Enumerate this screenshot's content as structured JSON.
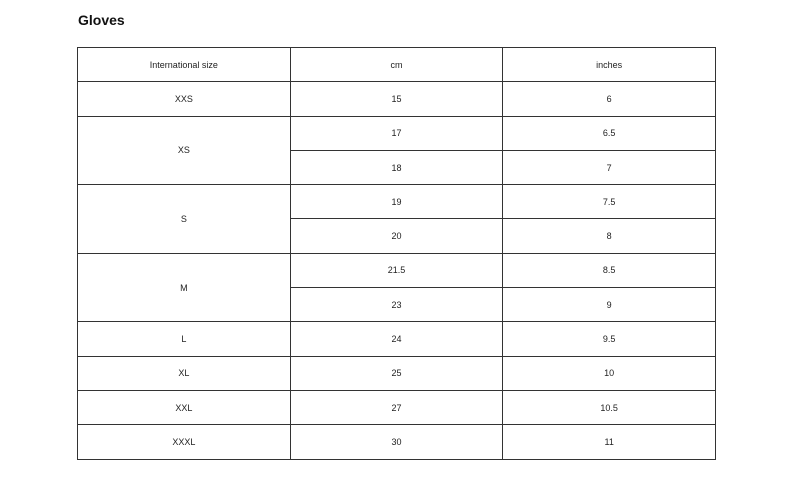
{
  "title": "Gloves",
  "headers": [
    "International size",
    "cm",
    "inches"
  ],
  "groups": [
    {
      "size": "XXS",
      "rows": [
        [
          "15",
          "6"
        ]
      ]
    },
    {
      "size": "XS",
      "rows": [
        [
          "17",
          "6.5"
        ],
        [
          "18",
          "7"
        ]
      ]
    },
    {
      "size": "S",
      "rows": [
        [
          "19",
          "7.5"
        ],
        [
          "20",
          "8"
        ]
      ]
    },
    {
      "size": "M",
      "rows": [
        [
          "21.5",
          "8.5"
        ],
        [
          "23",
          "9"
        ]
      ]
    },
    {
      "size": "L",
      "rows": [
        [
          "24",
          "9.5"
        ]
      ]
    },
    {
      "size": "XL",
      "rows": [
        [
          "25",
          "10"
        ]
      ]
    },
    {
      "size": "XXL",
      "rows": [
        [
          "27",
          "10.5"
        ]
      ]
    },
    {
      "size": "XXXL",
      "rows": [
        [
          "30",
          "11"
        ]
      ]
    }
  ]
}
